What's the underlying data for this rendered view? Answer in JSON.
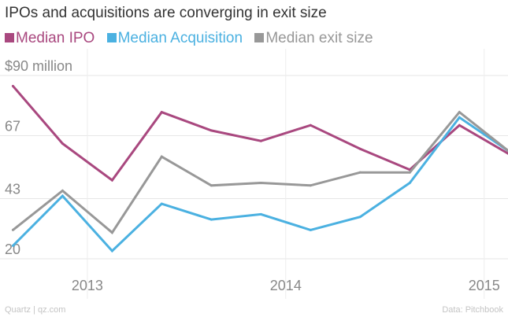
{
  "chart_data": {
    "type": "line",
    "title": "IPOs and acquisitions are converging in exit size",
    "y_tick_labels": [
      "20",
      "43",
      "67",
      "$90 million"
    ],
    "yticks": [
      20,
      43,
      67,
      90
    ],
    "ylim": [
      20,
      90
    ],
    "x_tick_labels": [
      "2013",
      "2014",
      "2015"
    ],
    "xticks": [
      2013.0,
      2014.0,
      2015.0
    ],
    "xlim": [
      2012.56,
      2015.12
    ],
    "x": [
      2012.625,
      2012.875,
      2013.125,
      2013.375,
      2013.625,
      2013.875,
      2014.125,
      2014.375,
      2014.625,
      2014.875,
      2015.125
    ],
    "series": [
      {
        "name": "Median IPO",
        "color": "#a9487f",
        "values": [
          86,
          64,
          50,
          76,
          69,
          65,
          71,
          62,
          54,
          71,
          60
        ]
      },
      {
        "name": "Median Acquisition",
        "color": "#4bb1e1",
        "values": [
          25,
          44,
          23,
          41,
          35,
          37,
          31,
          36,
          49,
          74,
          61
        ]
      },
      {
        "name": "Median exit size",
        "color": "#989898",
        "values": [
          31,
          46,
          30,
          59,
          48,
          49,
          48,
          53,
          53,
          76,
          61
        ]
      }
    ],
    "grid": true,
    "source": "Data: Pitchbook",
    "credit": "Quartz | qz.com"
  }
}
